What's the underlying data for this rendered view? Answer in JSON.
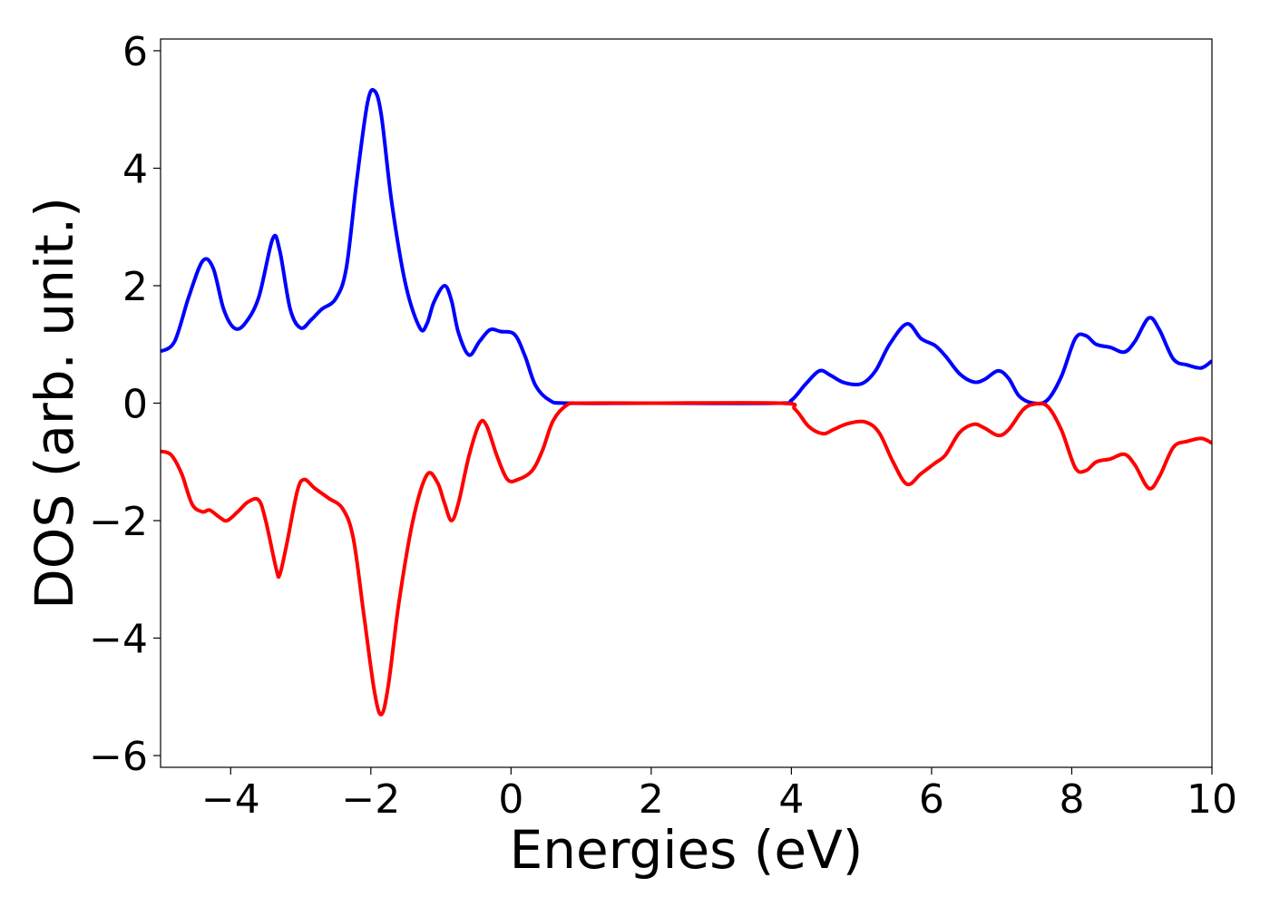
{
  "chart_data": {
    "type": "line",
    "title": "",
    "xlabel": "Energies (eV)",
    "ylabel": "DOS (arb. unit.)",
    "xlim": [
      -5,
      10
    ],
    "ylim": [
      -6.2,
      6.2
    ],
    "xticks": [
      -4,
      -2,
      0,
      2,
      4,
      6,
      8,
      10
    ],
    "xtick_labels": [
      "−4",
      "−2",
      "0",
      "2",
      "4",
      "6",
      "8",
      "10"
    ],
    "yticks": [
      -6,
      -4,
      -2,
      0,
      2,
      4,
      6
    ],
    "ytick_labels": [
      "−6",
      "−4",
      "−2",
      "0",
      "2",
      "4",
      "6"
    ],
    "grid": false,
    "series": [
      {
        "color": "#0000ff",
        "points": [
          [
            -5.0,
            0.88
          ],
          [
            -4.8,
            1.05
          ],
          [
            -4.6,
            1.8
          ],
          [
            -4.4,
            2.42
          ],
          [
            -4.25,
            2.3
          ],
          [
            -4.1,
            1.6
          ],
          [
            -3.95,
            1.28
          ],
          [
            -3.8,
            1.35
          ],
          [
            -3.6,
            1.8
          ],
          [
            -3.4,
            2.8
          ],
          [
            -3.3,
            2.6
          ],
          [
            -3.15,
            1.6
          ],
          [
            -3.0,
            1.28
          ],
          [
            -2.85,
            1.42
          ],
          [
            -2.7,
            1.6
          ],
          [
            -2.5,
            1.78
          ],
          [
            -2.35,
            2.3
          ],
          [
            -2.2,
            3.8
          ],
          [
            -2.05,
            5.1
          ],
          [
            -1.95,
            5.32
          ],
          [
            -1.85,
            4.9
          ],
          [
            -1.7,
            3.4
          ],
          [
            -1.5,
            2.0
          ],
          [
            -1.3,
            1.28
          ],
          [
            -1.2,
            1.35
          ],
          [
            -1.1,
            1.72
          ],
          [
            -0.95,
            2.0
          ],
          [
            -0.85,
            1.75
          ],
          [
            -0.75,
            1.2
          ],
          [
            -0.6,
            0.82
          ],
          [
            -0.45,
            1.05
          ],
          [
            -0.3,
            1.25
          ],
          [
            -0.15,
            1.22
          ],
          [
            0.05,
            1.17
          ],
          [
            0.2,
            0.8
          ],
          [
            0.35,
            0.3
          ],
          [
            0.55,
            0.05
          ],
          [
            0.8,
            0.0
          ],
          [
            2.0,
            0.0
          ],
          [
            3.8,
            0.0
          ],
          [
            4.0,
            0.05
          ],
          [
            4.2,
            0.32
          ],
          [
            4.4,
            0.55
          ],
          [
            4.55,
            0.48
          ],
          [
            4.75,
            0.35
          ],
          [
            5.0,
            0.33
          ],
          [
            5.2,
            0.55
          ],
          [
            5.4,
            1.0
          ],
          [
            5.65,
            1.35
          ],
          [
            5.85,
            1.1
          ],
          [
            6.05,
            0.98
          ],
          [
            6.2,
            0.8
          ],
          [
            6.4,
            0.5
          ],
          [
            6.6,
            0.36
          ],
          [
            6.75,
            0.4
          ],
          [
            6.95,
            0.55
          ],
          [
            7.1,
            0.42
          ],
          [
            7.25,
            0.12
          ],
          [
            7.45,
            0.0
          ],
          [
            7.65,
            0.05
          ],
          [
            7.85,
            0.45
          ],
          [
            8.05,
            1.1
          ],
          [
            8.2,
            1.15
          ],
          [
            8.35,
            1.0
          ],
          [
            8.55,
            0.95
          ],
          [
            8.75,
            0.87
          ],
          [
            8.9,
            1.05
          ],
          [
            9.1,
            1.45
          ],
          [
            9.25,
            1.25
          ],
          [
            9.45,
            0.75
          ],
          [
            9.65,
            0.65
          ],
          [
            9.85,
            0.6
          ],
          [
            10.0,
            0.72
          ]
        ]
      },
      {
        "color": "#ff0000",
        "points": [
          [
            -5.0,
            -0.82
          ],
          [
            -4.85,
            -0.88
          ],
          [
            -4.7,
            -1.2
          ],
          [
            -4.55,
            -1.72
          ],
          [
            -4.4,
            -1.85
          ],
          [
            -4.3,
            -1.82
          ],
          [
            -4.15,
            -1.95
          ],
          [
            -4.05,
            -2.0
          ],
          [
            -3.9,
            -1.85
          ],
          [
            -3.75,
            -1.68
          ],
          [
            -3.6,
            -1.65
          ],
          [
            -3.5,
            -2.0
          ],
          [
            -3.35,
            -2.82
          ],
          [
            -3.3,
            -2.92
          ],
          [
            -3.2,
            -2.4
          ],
          [
            -3.05,
            -1.5
          ],
          [
            -2.95,
            -1.3
          ],
          [
            -2.8,
            -1.45
          ],
          [
            -2.6,
            -1.62
          ],
          [
            -2.4,
            -1.8
          ],
          [
            -2.25,
            -2.3
          ],
          [
            -2.1,
            -3.6
          ],
          [
            -1.95,
            -4.9
          ],
          [
            -1.85,
            -5.3
          ],
          [
            -1.75,
            -4.8
          ],
          [
            -1.6,
            -3.4
          ],
          [
            -1.4,
            -2.0
          ],
          [
            -1.2,
            -1.22
          ],
          [
            -1.05,
            -1.35
          ],
          [
            -0.95,
            -1.7
          ],
          [
            -0.85,
            -2.0
          ],
          [
            -0.75,
            -1.7
          ],
          [
            -0.6,
            -0.9
          ],
          [
            -0.45,
            -0.35
          ],
          [
            -0.35,
            -0.38
          ],
          [
            -0.2,
            -0.9
          ],
          [
            -0.05,
            -1.3
          ],
          [
            0.1,
            -1.3
          ],
          [
            0.3,
            -1.15
          ],
          [
            0.45,
            -0.8
          ],
          [
            0.6,
            -0.3
          ],
          [
            0.8,
            -0.03
          ],
          [
            1.0,
            0.0
          ],
          [
            2.0,
            0.0
          ],
          [
            3.85,
            0.0
          ],
          [
            4.05,
            -0.1
          ],
          [
            4.25,
            -0.4
          ],
          [
            4.45,
            -0.52
          ],
          [
            4.6,
            -0.45
          ],
          [
            4.8,
            -0.35
          ],
          [
            5.05,
            -0.32
          ],
          [
            5.25,
            -0.5
          ],
          [
            5.45,
            -1.0
          ],
          [
            5.65,
            -1.38
          ],
          [
            5.85,
            -1.2
          ],
          [
            6.05,
            -1.02
          ],
          [
            6.2,
            -0.88
          ],
          [
            6.4,
            -0.5
          ],
          [
            6.6,
            -0.36
          ],
          [
            6.75,
            -0.42
          ],
          [
            6.95,
            -0.55
          ],
          [
            7.1,
            -0.45
          ],
          [
            7.3,
            -0.12
          ],
          [
            7.45,
            -0.02
          ],
          [
            7.65,
            -0.05
          ],
          [
            7.85,
            -0.45
          ],
          [
            8.05,
            -1.1
          ],
          [
            8.2,
            -1.15
          ],
          [
            8.35,
            -1.0
          ],
          [
            8.55,
            -0.95
          ],
          [
            8.75,
            -0.87
          ],
          [
            8.9,
            -1.05
          ],
          [
            9.1,
            -1.45
          ],
          [
            9.25,
            -1.25
          ],
          [
            9.45,
            -0.75
          ],
          [
            9.65,
            -0.65
          ],
          [
            9.85,
            -0.6
          ],
          [
            10.0,
            -0.68
          ]
        ]
      }
    ]
  }
}
